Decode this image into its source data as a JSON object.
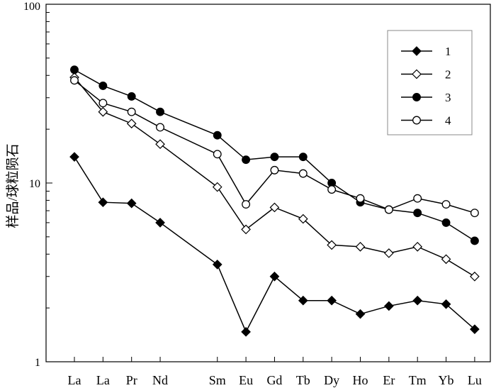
{
  "chart_data": {
    "type": "line",
    "title": "",
    "xlabel": "",
    "ylabel": "样品/球粒陨石",
    "yscale": "log",
    "ylim": [
      1,
      100
    ],
    "y_ticks": [
      "1",
      "10",
      "100"
    ],
    "grid": false,
    "legend_position": "top-right",
    "categories": [
      "La",
      "La",
      "Pr",
      "Nd",
      "Sm",
      "Eu",
      "Gd",
      "Tb",
      "Dy",
      "Ho",
      "Er",
      "Tm",
      "Yb",
      "Lu"
    ],
    "x_positions": [
      1,
      2,
      3,
      4,
      6,
      7,
      8,
      9,
      10,
      11,
      12,
      13,
      14,
      15
    ],
    "series": [
      {
        "name": "1",
        "marker": "diamond-filled",
        "values": [
          14.0,
          7.8,
          7.7,
          6.0,
          3.5,
          1.47,
          3.0,
          2.2,
          2.2,
          1.85,
          2.05,
          2.2,
          2.1,
          1.52
        ]
      },
      {
        "name": "2",
        "marker": "diamond-open",
        "values": [
          39.0,
          25.0,
          21.5,
          16.5,
          9.5,
          5.5,
          7.3,
          6.3,
          4.5,
          4.4,
          4.05,
          4.4,
          3.75,
          3.0
        ]
      },
      {
        "name": "3",
        "marker": "circle-filled",
        "values": [
          43.0,
          35.0,
          30.5,
          25.0,
          18.5,
          13.5,
          14.0,
          14.0,
          10.0,
          7.8,
          7.1,
          6.8,
          6.0,
          4.75
        ]
      },
      {
        "name": "4",
        "marker": "circle-open",
        "values": [
          37.5,
          28.0,
          25.0,
          20.5,
          14.5,
          7.6,
          11.8,
          11.3,
          9.2,
          8.2,
          7.1,
          8.2,
          7.6,
          6.8
        ]
      }
    ]
  }
}
